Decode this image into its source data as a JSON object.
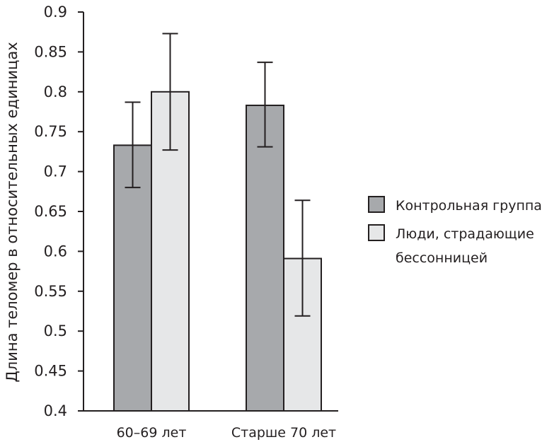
{
  "chart_data": {
    "type": "bar",
    "title": "",
    "xlabel": "",
    "ylabel": "Длина теломер в относительных единицах",
    "ylim": [
      0.4,
      0.9
    ],
    "yticks": [
      "0.4",
      "0.45",
      "0.5",
      "0.55",
      "0.6",
      "0.65",
      "0.7",
      "0.75",
      "0.8",
      "0.85",
      "0.9"
    ],
    "categories": [
      "60–69 лет",
      "Старше 70 лет"
    ],
    "series": [
      {
        "name": "Контрольная группа",
        "color": "#a7a9ac",
        "values": [
          0.733,
          0.783
        ],
        "err_low": [
          0.68,
          0.731
        ],
        "err_high": [
          0.787,
          0.837
        ]
      },
      {
        "name": "Люди, страдающие бессонницей",
        "legend_lines": [
          "Люди, страдающие",
          "бессонницей"
        ],
        "color": "#e6e7e8",
        "values": [
          0.8,
          0.591
        ],
        "err_low": [
          0.727,
          0.519
        ],
        "err_high": [
          0.873,
          0.664
        ]
      }
    ],
    "legend": "right"
  }
}
